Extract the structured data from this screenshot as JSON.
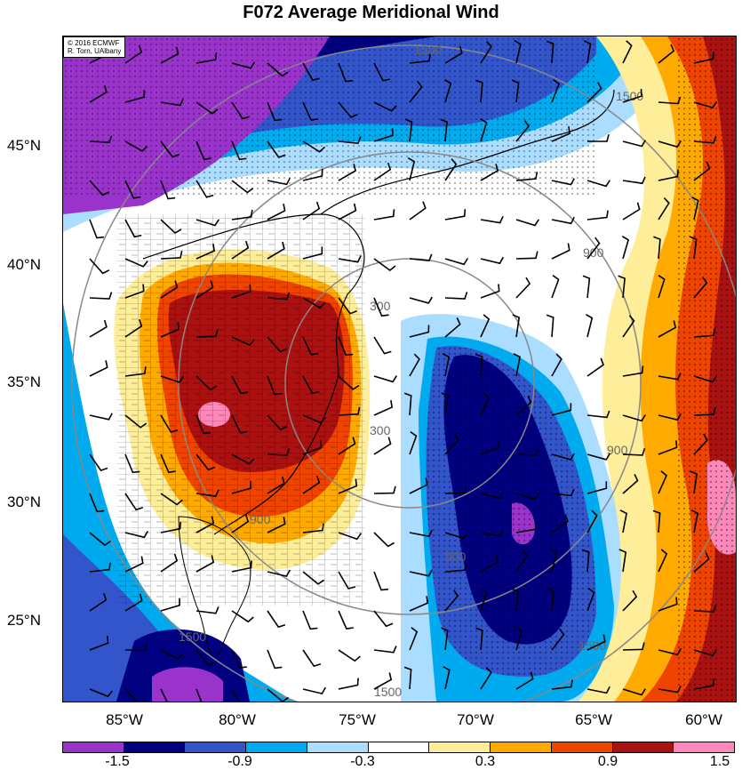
{
  "title": "F072 Average Meridional Wind",
  "credit": {
    "line1": "© 2016 ECMWF",
    "line2": "R. Torn, UAlbany"
  },
  "latitude_labels": [
    "45°N",
    "40°N",
    "35°N",
    "30°N",
    "25°N"
  ],
  "longitude_labels": [
    "85°W",
    "80°W",
    "75°W",
    "70°W",
    "65°W",
    "60°W"
  ],
  "range_ring_labels": [
    "300",
    "300",
    "900",
    "900",
    "900",
    "900",
    "1500",
    "1500",
    "1500",
    "1500",
    "1500"
  ],
  "colorbar": {
    "colors": [
      "#9933cc",
      "#000080",
      "#3355cc",
      "#00aaee",
      "#aaddff",
      "#ffffff",
      "#ffee99",
      "#ffaa00",
      "#ee4400",
      "#aa1111",
      "#ff88bb"
    ],
    "labels": [
      "-1.5",
      "-0.9",
      "-0.3",
      "0.3",
      "0.9",
      "1.5"
    ]
  }
}
